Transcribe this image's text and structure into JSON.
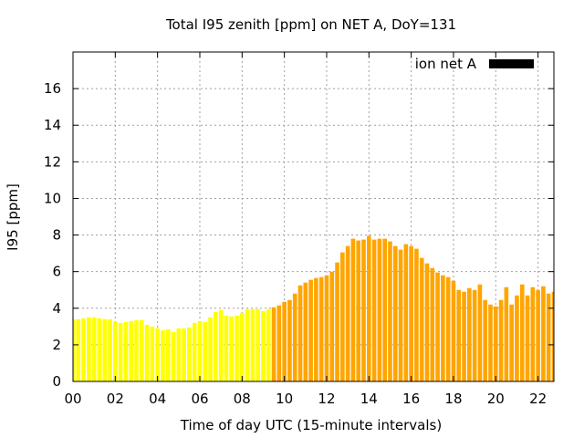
{
  "chart_data": {
    "type": "bar",
    "title": "Total I95 zenith [ppm] on NET A, DoY=131",
    "xlabel": "Time of day UTC (15-minute intervals)",
    "ylabel": "I95 [ppm]",
    "xlim": [
      0,
      22.75
    ],
    "ylim": [
      0,
      18
    ],
    "x_ticks": [
      "00",
      "02",
      "04",
      "06",
      "08",
      "10",
      "12",
      "14",
      "16",
      "18",
      "20",
      "22"
    ],
    "y_ticks": [
      "0",
      "2",
      "4",
      "6",
      "8",
      "10",
      "12",
      "14",
      "16"
    ],
    "grid": true,
    "legend": {
      "position": "top-right",
      "entries": [
        {
          "label": "ion net A",
          "color": "#000000"
        }
      ]
    },
    "colors": {
      "low": "#ffff00",
      "high": "#ffa500"
    },
    "bar_interval_hours": 0.25,
    "color_threshold": 4,
    "values": [
      3.4,
      3.4,
      3.45,
      3.5,
      3.5,
      3.45,
      3.4,
      3.4,
      3.25,
      3.2,
      3.25,
      3.3,
      3.35,
      3.35,
      3.1,
      3.0,
      2.9,
      2.8,
      2.85,
      2.7,
      2.9,
      2.9,
      2.95,
      3.2,
      3.3,
      3.25,
      3.5,
      3.8,
      3.9,
      3.6,
      3.55,
      3.6,
      3.75,
      3.95,
      3.95,
      3.95,
      3.85,
      3.95,
      4.05,
      4.15,
      4.35,
      4.45,
      4.8,
      5.25,
      5.4,
      5.55,
      5.65,
      5.7,
      5.8,
      6.0,
      6.5,
      7.05,
      7.4,
      7.8,
      7.7,
      7.75,
      7.95,
      7.75,
      7.8,
      7.8,
      7.65,
      7.4,
      7.2,
      7.5,
      7.4,
      7.25,
      6.75,
      6.45,
      6.2,
      5.95,
      5.8,
      5.7,
      5.5,
      5.0,
      4.9,
      5.1,
      5.0,
      5.3,
      4.45,
      4.2,
      4.1,
      4.45,
      5.15,
      4.2,
      4.7,
      5.3,
      4.7,
      5.15,
      5.0,
      5.2,
      4.8,
      4.9
    ]
  }
}
